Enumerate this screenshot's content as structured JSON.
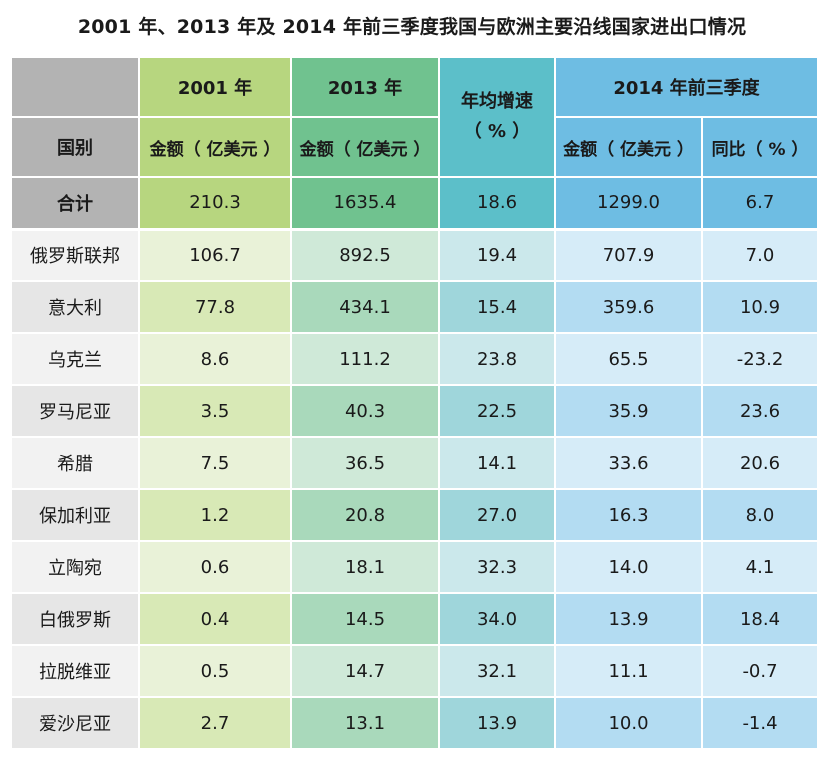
{
  "chart_data": {
    "type": "table",
    "title": "2001 年、2013 年及 2014 年前三季度我国与欧洲主要沿线国家进出口情况",
    "header": {
      "country": "国别",
      "y2001": "2001 年",
      "y2013": "2013 年",
      "growth_line1": "年均增速",
      "growth_line2": "（ % ）",
      "y2014q3": "2014 年前三季度",
      "amount_label": "金额（ 亿美元 ）",
      "yoy_label": "同比（ % ）"
    },
    "total": {
      "name": "合计",
      "amount_2001": "210.3",
      "amount_2013": "1635.4",
      "avg_growth": "18.6",
      "amount_2014q3": "1299.0",
      "yoy": "6.7"
    },
    "rows": [
      {
        "name": "俄罗斯联邦",
        "amount_2001": "106.7",
        "amount_2013": "892.5",
        "avg_growth": "19.4",
        "amount_2014q3": "707.9",
        "yoy": "7.0"
      },
      {
        "name": "意大利",
        "amount_2001": "77.8",
        "amount_2013": "434.1",
        "avg_growth": "15.4",
        "amount_2014q3": "359.6",
        "yoy": "10.9"
      },
      {
        "name": "乌克兰",
        "amount_2001": "8.6",
        "amount_2013": "111.2",
        "avg_growth": "23.8",
        "amount_2014q3": "65.5",
        "yoy": "-23.2"
      },
      {
        "name": "罗马尼亚",
        "amount_2001": "3.5",
        "amount_2013": "40.3",
        "avg_growth": "22.5",
        "amount_2014q3": "35.9",
        "yoy": "23.6"
      },
      {
        "name": "希腊",
        "amount_2001": "7.5",
        "amount_2013": "36.5",
        "avg_growth": "14.1",
        "amount_2014q3": "33.6",
        "yoy": "20.6"
      },
      {
        "name": "保加利亚",
        "amount_2001": "1.2",
        "amount_2013": "20.8",
        "avg_growth": "27.0",
        "amount_2014q3": "16.3",
        "yoy": "8.0"
      },
      {
        "name": "立陶宛",
        "amount_2001": "0.6",
        "amount_2013": "18.1",
        "avg_growth": "32.3",
        "amount_2014q3": "14.0",
        "yoy": "4.1"
      },
      {
        "name": "白俄罗斯",
        "amount_2001": "0.4",
        "amount_2013": "14.5",
        "avg_growth": "34.0",
        "amount_2014q3": "13.9",
        "yoy": "18.4"
      },
      {
        "name": "拉脱维亚",
        "amount_2001": "0.5",
        "amount_2013": "14.7",
        "avg_growth": "32.1",
        "amount_2014q3": "11.1",
        "yoy": "-0.7"
      },
      {
        "name": "爱沙尼亚",
        "amount_2001": "2.7",
        "amount_2013": "13.1",
        "avg_growth": "13.9",
        "amount_2014q3": "10.0",
        "yoy": "-1.4"
      }
    ]
  },
  "colors": {
    "header_gray": "#b3b3b3",
    "header_green_light": "#b7d67f",
    "header_green": "#70c28f",
    "header_teal": "#5cbfc9",
    "header_blue": "#6ebde3"
  }
}
